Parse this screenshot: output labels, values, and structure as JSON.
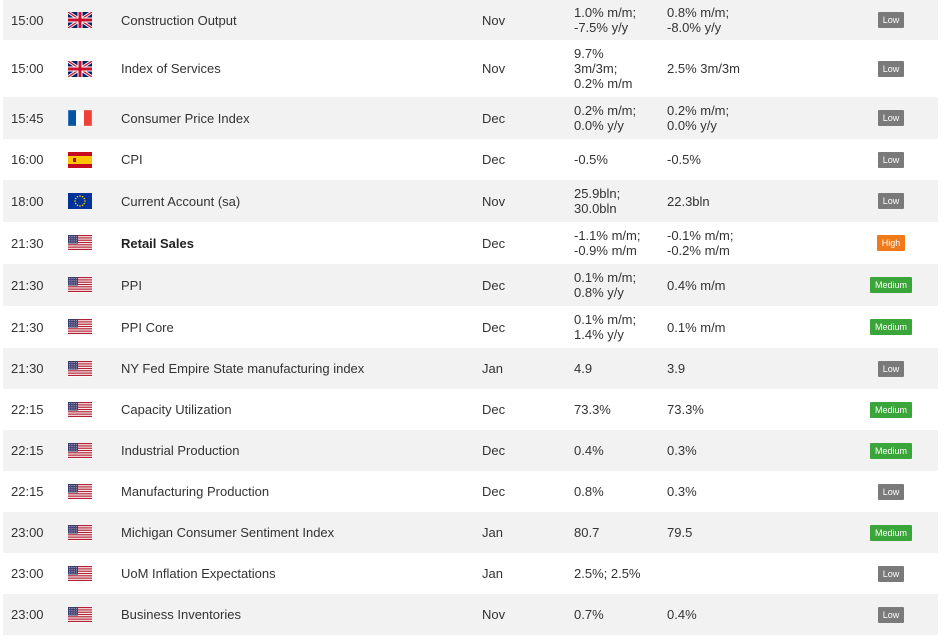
{
  "colors": {
    "low": "#7a7a7a",
    "medium": "#3aa63a",
    "high": "#f07a1a"
  },
  "rows": [
    {
      "time": "15:00",
      "flag": "uk-flag-icon",
      "event": "Construction Output",
      "period": "Nov",
      "actual": "1.0% m/m;\n-7.5% y/y",
      "previous": "0.8% m/m;\n-8.0% y/y",
      "importance": "Low",
      "bold": false
    },
    {
      "time": "15:00",
      "flag": "uk-flag-icon",
      "event": "Index of Services",
      "period": "Nov",
      "actual": "9.7%\n3m/3m;\n0.2% m/m",
      "previous": "2.5% 3m/3m",
      "importance": "Low",
      "bold": false
    },
    {
      "time": "15:45",
      "flag": "france-flag-icon",
      "event": "Consumer Price Index",
      "period": "Dec",
      "actual": "0.2% m/m;\n0.0% y/y",
      "previous": "0.2% m/m;\n0.0% y/y",
      "importance": "Low",
      "bold": false
    },
    {
      "time": "16:00",
      "flag": "spain-flag-icon",
      "event": "CPI",
      "period": "Dec",
      "actual": "-0.5%",
      "previous": "-0.5%",
      "importance": "Low",
      "bold": false
    },
    {
      "time": "18:00",
      "flag": "eu-flag-icon",
      "event": "Current Account (sa)",
      "period": "Nov",
      "actual": "25.9bln;\n30.0bln",
      "previous": "22.3bln",
      "importance": "Low",
      "bold": false
    },
    {
      "time": "21:30",
      "flag": "us-flag-icon",
      "event": "Retail Sales",
      "period": "Dec",
      "actual": "-1.1% m/m;\n-0.9% m/m",
      "previous": "-0.1% m/m;\n-0.2% m/m",
      "importance": "High",
      "bold": true
    },
    {
      "time": "21:30",
      "flag": "us-flag-icon",
      "event": "PPI",
      "period": "Dec",
      "actual": "0.1% m/m;\n0.8% y/y",
      "previous": "0.4% m/m",
      "importance": "Medium",
      "bold": false
    },
    {
      "time": "21:30",
      "flag": "us-flag-icon",
      "event": "PPI Core",
      "period": "Dec",
      "actual": "0.1% m/m;\n1.4% y/y",
      "previous": "0.1% m/m",
      "importance": "Medium",
      "bold": false
    },
    {
      "time": "21:30",
      "flag": "us-flag-icon",
      "event": "NY Fed Empire State manufacturing index",
      "period": "Jan",
      "actual": "4.9",
      "previous": "3.9",
      "importance": "Low",
      "bold": false
    },
    {
      "time": "22:15",
      "flag": "us-flag-icon",
      "event": "Capacity Utilization",
      "period": "Dec",
      "actual": "73.3%",
      "previous": "73.3%",
      "importance": "Medium",
      "bold": false
    },
    {
      "time": "22:15",
      "flag": "us-flag-icon",
      "event": "Industrial Production",
      "period": "Dec",
      "actual": "0.4%",
      "previous": "0.3%",
      "importance": "Medium",
      "bold": false
    },
    {
      "time": "22:15",
      "flag": "us-flag-icon",
      "event": "Manufacturing Production",
      "period": "Dec",
      "actual": "0.8%",
      "previous": "0.3%",
      "importance": "Low",
      "bold": false
    },
    {
      "time": "23:00",
      "flag": "us-flag-icon",
      "event": "Michigan Consumer Sentiment Index",
      "period": "Jan",
      "actual": "80.7",
      "previous": "79.5",
      "importance": "Medium",
      "bold": false
    },
    {
      "time": "23:00",
      "flag": "us-flag-icon",
      "event": "UoM Inflation Expectations",
      "period": "Jan",
      "actual": "2.5%; 2.5%",
      "previous": "",
      "importance": "Low",
      "bold": false
    },
    {
      "time": "23:00",
      "flag": "us-flag-icon",
      "event": "Business Inventories",
      "period": "Nov",
      "actual": "0.7%",
      "previous": "0.4%",
      "importance": "Low",
      "bold": false
    }
  ]
}
